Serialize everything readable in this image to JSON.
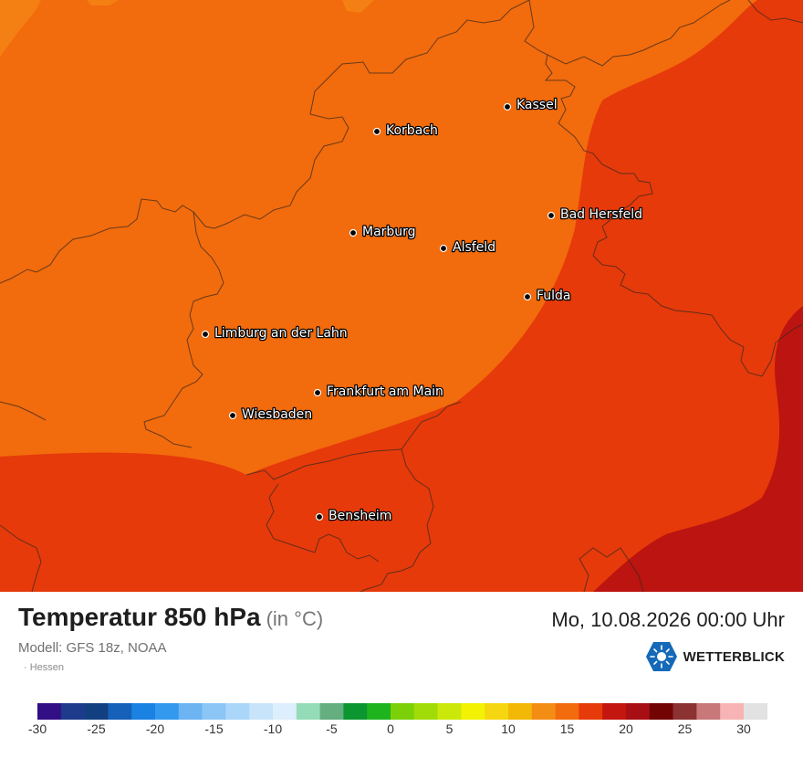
{
  "map": {
    "region": "Hessen",
    "cities": [
      {
        "name": "Kassel"
      },
      {
        "name": "Korbach"
      },
      {
        "name": "Bad Hersfeld"
      },
      {
        "name": "Marburg"
      },
      {
        "name": "Alsfeld"
      },
      {
        "name": "Fulda"
      },
      {
        "name": "Limburg an der Lahn"
      },
      {
        "name": "Frankfurt am Main"
      },
      {
        "name": "Wiesbaden"
      },
      {
        "name": "Bensheim"
      }
    ],
    "field_colors": {
      "band_10_12": "#f48014",
      "band_12_14": "#f26b0c",
      "band_14_16": "#e63a0a",
      "band_16_18": "#bc1410"
    }
  },
  "footer": {
    "title": "Temperatur 850 hPa",
    "unit": "(in °C)",
    "datetime": "Mo, 10.08.2026 00:00 Uhr",
    "model": "Modell: GFS 18z, NOAA",
    "region": "· Hessen",
    "logo_text": "WETTERBLICK",
    "logo_icon": "sun-snowflake-hexagon-icon"
  },
  "legend": {
    "min": -30,
    "max": 32,
    "step": 2,
    "colors": [
      "#330f86",
      "#1e3a8a",
      "#123f80",
      "#1560b8",
      "#1a82e2",
      "#3399ee",
      "#6cb4f2",
      "#8cc6f7",
      "#aad6f9",
      "#c8e4fb",
      "#ddeefc",
      "#94dcb8",
      "#64ae80",
      "#0c9630",
      "#1eb41e",
      "#7cd008",
      "#a2dc08",
      "#cce80a",
      "#f2f202",
      "#f5d610",
      "#f2b805",
      "#f48d14",
      "#f26b0c",
      "#e63a0a",
      "#c3160e",
      "#a80f14",
      "#730404",
      "#8c3232",
      "#c87878",
      "#f8b4b4",
      "#e2e2e2"
    ],
    "ticks": [
      -30,
      -25,
      -20,
      -15,
      -10,
      -5,
      0,
      5,
      10,
      15,
      20,
      25,
      30
    ]
  }
}
